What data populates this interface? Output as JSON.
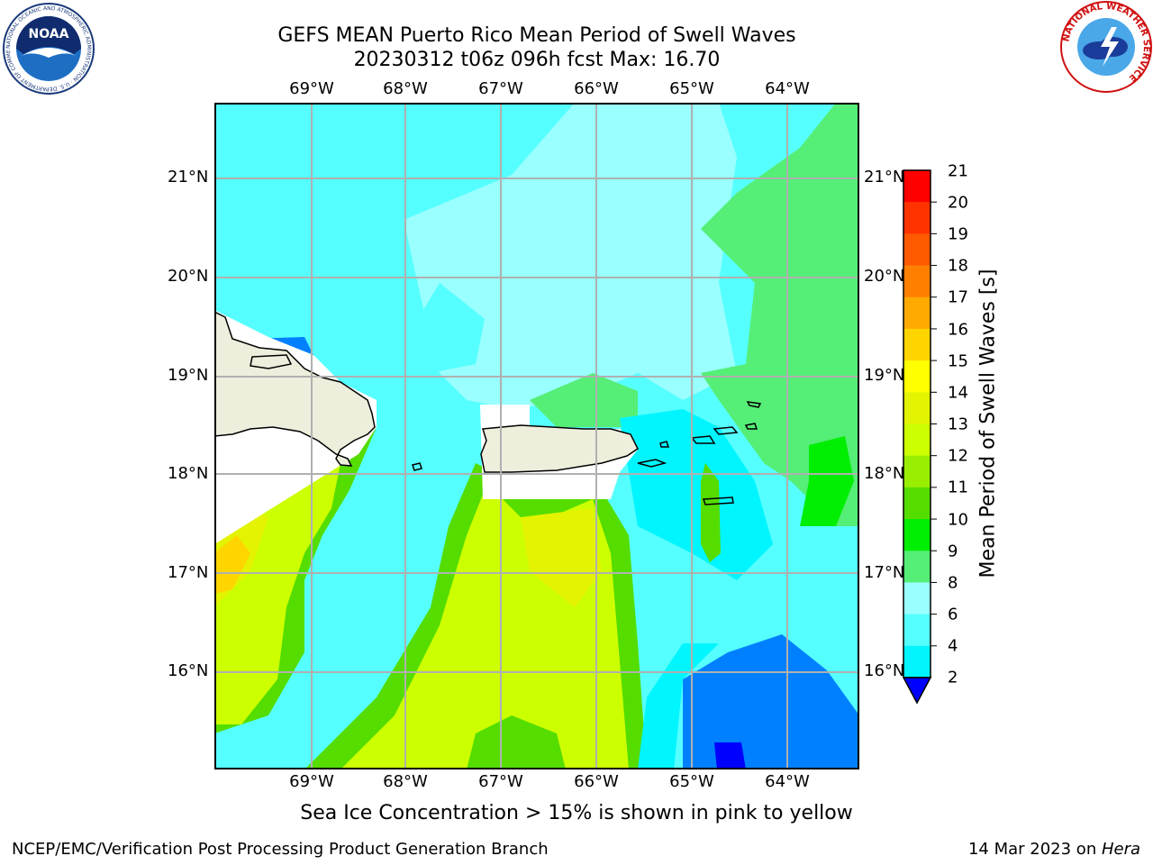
{
  "header": {
    "title_line1": "GEFS MEAN Puerto Rico Mean Period of Swell Waves",
    "title_line2": "20230312 t06z 096h fcst   Max: 16.70"
  },
  "map": {
    "lon_labels": [
      "69°W",
      "68°W",
      "67°W",
      "66°W",
      "65°W",
      "64°W"
    ],
    "lat_labels": [
      "21°N",
      "20°N",
      "19°N",
      "18°N",
      "17°N",
      "16°N"
    ],
    "land_color": "#eeeedd",
    "grid_color": "#b0b0b0"
  },
  "colorbar": {
    "title": "Mean Period of Swell Waves [s]",
    "ticks": [
      "21",
      "20",
      "19",
      "18",
      "17",
      "16",
      "15",
      "14",
      "13",
      "12",
      "11",
      "10",
      "9",
      "8",
      "6",
      "4",
      "2"
    ],
    "colors": [
      "#ff0000",
      "#ff3300",
      "#ff5a00",
      "#ff8000",
      "#ffaa00",
      "#ffd500",
      "#ffff00",
      "#e3f300",
      "#ccff00",
      "#99ee00",
      "#55dd00",
      "#00ee00",
      "#55ee77",
      "#99ffff",
      "#55ffff",
      "#00f5ff",
      "#0080ff",
      "#0000ff"
    ]
  },
  "notes": {
    "ice_note": "Sea Ice Concentration > 15% is shown in pink to yellow"
  },
  "footer": {
    "left": "NCEP/EMC/Verification Post Processing Product Generation Branch",
    "date": "14 Mar 2023 on ",
    "machine": "Hera"
  },
  "logos": {
    "noaa_text": "NOAA",
    "noaa_ring": "NATIONAL OCEANIC AND ATMOSPHERIC ADMINISTRATION · U.S. DEPARTMENT OF COMMERCE",
    "nws_ring": "NATIONAL WEATHER SERVICE"
  }
}
